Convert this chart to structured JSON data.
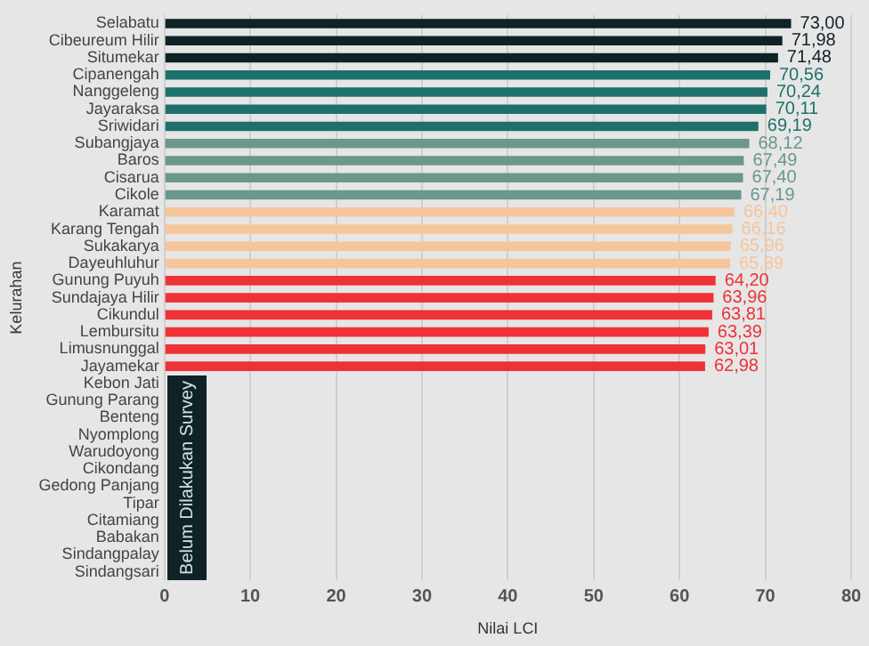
{
  "chart_data": {
    "type": "bar",
    "orientation": "horizontal",
    "xlabel": "Nilai LCI",
    "ylabel": "Kelurahan",
    "categories": [
      "Selabatu",
      "Cibeureum Hilir",
      "Situmekar",
      "Cipanengah",
      "Nanggeleng",
      "Jayaraksa",
      "Sriwidari",
      "Subangjaya",
      "Baros",
      "Cisarua",
      "Cikole",
      "Karamat",
      "Karang Tengah",
      "Sukakarya",
      "Dayeuhluhur",
      "Gunung Puyuh",
      "Sundajaya Hilir",
      "Cikundul",
      "Lembursitu",
      "Limusnunggal",
      "Jayamekar",
      "Kebon Jati",
      "Gunung Parang",
      "Benteng",
      "Nyomplong",
      "Warudoyong",
      "Cikondang",
      "Gedong Panjang",
      "Tipar",
      "Citamiang",
      "Babakan",
      "Sindangpalay",
      "Sindangsari"
    ],
    "values": [
      73.0,
      71.98,
      71.48,
      70.56,
      70.24,
      70.11,
      69.19,
      68.12,
      67.49,
      67.4,
      67.19,
      66.4,
      66.16,
      65.96,
      65.89,
      64.2,
      63.96,
      63.81,
      63.39,
      63.01,
      62.98,
      null,
      null,
      null,
      null,
      null,
      null,
      null,
      null,
      null,
      null,
      null,
      null
    ],
    "value_labels": [
      "73,00",
      "71,98",
      "71,48",
      "70,56",
      "70,24",
      "70,11",
      "69,19",
      "68,12",
      "67,49",
      "67,40",
      "67,19",
      "66,40",
      "66,16",
      "65,96",
      "65,89",
      "64,20",
      "63,96",
      "63,81",
      "63,39",
      "63,01",
      "62,98",
      null,
      null,
      null,
      null,
      null,
      null,
      null,
      null,
      null,
      null,
      null,
      null
    ],
    "colors": [
      "#0f2226",
      "#0f2226",
      "#0f2226",
      "#1e716b",
      "#1e716b",
      "#1e716b",
      "#1e716b",
      "#6b978c",
      "#6b978c",
      "#6b978c",
      "#6b978c",
      "#f5c59c",
      "#f5c59c",
      "#f5c59c",
      "#f5c59c",
      "#ee3238",
      "#ee3238",
      "#ee3238",
      "#ee3238",
      "#ee3238",
      "#ee3238",
      null,
      null,
      null,
      null,
      null,
      null,
      null,
      null,
      null,
      null,
      null,
      null
    ],
    "xlim": [
      0,
      80
    ],
    "xticks": [
      0,
      10,
      20,
      30,
      40,
      50,
      60,
      70,
      80
    ],
    "grid": "x",
    "legend": false,
    "annotations": [
      "Belum Dilakukan Survey"
    ]
  }
}
